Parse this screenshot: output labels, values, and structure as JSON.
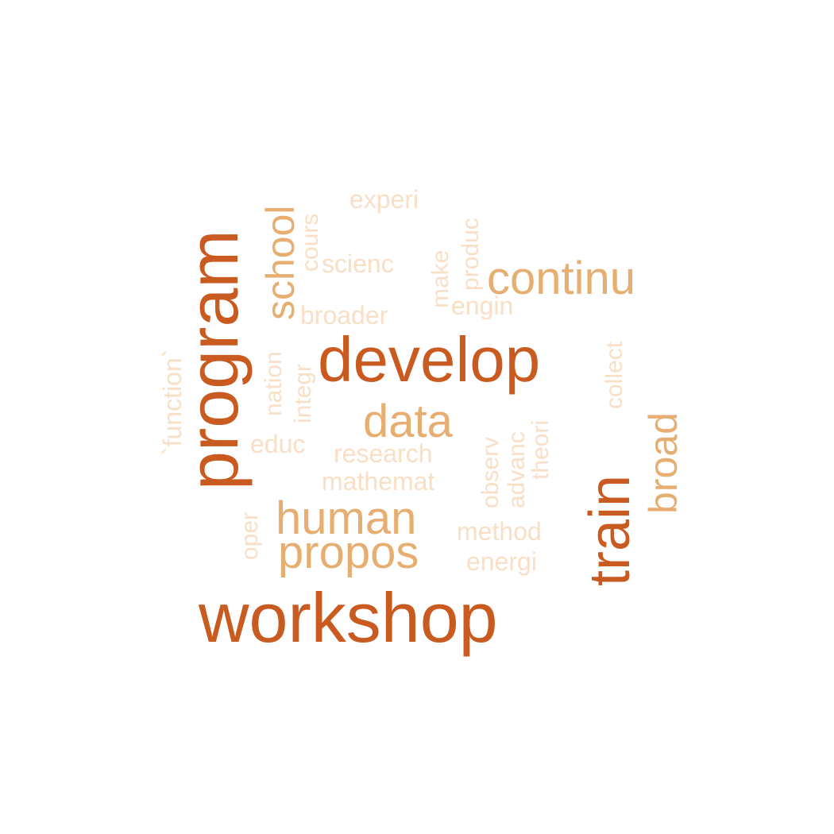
{
  "colors": {
    "dark": "#c95a20",
    "medium": "#e7ae72",
    "light": "#f8dfc6"
  },
  "words": [
    {
      "id": "workshop",
      "text": "workshop",
      "color": "dark",
      "orientation": "horizontal"
    },
    {
      "id": "develop",
      "text": "develop",
      "color": "dark",
      "orientation": "horizontal"
    },
    {
      "id": "program",
      "text": "program",
      "color": "dark",
      "orientation": "vertical"
    },
    {
      "id": "train",
      "text": "train",
      "color": "dark",
      "orientation": "vertical"
    },
    {
      "id": "continu",
      "text": "continu",
      "color": "medium",
      "orientation": "horizontal"
    },
    {
      "id": "human",
      "text": "human",
      "color": "medium",
      "orientation": "horizontal"
    },
    {
      "id": "propos",
      "text": "propos",
      "color": "medium",
      "orientation": "horizontal"
    },
    {
      "id": "data",
      "text": "data",
      "color": "medium",
      "orientation": "horizontal"
    },
    {
      "id": "school",
      "text": "school",
      "color": "medium",
      "orientation": "vertical"
    },
    {
      "id": "broad",
      "text": "broad",
      "color": "medium",
      "orientation": "vertical"
    },
    {
      "id": "experi",
      "text": "experi",
      "color": "light",
      "orientation": "horizontal"
    },
    {
      "id": "scienc",
      "text": "scienc",
      "color": "light",
      "orientation": "horizontal"
    },
    {
      "id": "broader",
      "text": "broader",
      "color": "light",
      "orientation": "horizontal"
    },
    {
      "id": "engin",
      "text": "engin",
      "color": "light",
      "orientation": "horizontal"
    },
    {
      "id": "educ",
      "text": "educ",
      "color": "light",
      "orientation": "horizontal"
    },
    {
      "id": "research",
      "text": "research",
      "color": "light",
      "orientation": "horizontal"
    },
    {
      "id": "mathemat",
      "text": "mathemat",
      "color": "light",
      "orientation": "horizontal"
    },
    {
      "id": "method",
      "text": "method",
      "color": "light",
      "orientation": "horizontal"
    },
    {
      "id": "energi",
      "text": "energi",
      "color": "light",
      "orientation": "horizontal"
    },
    {
      "id": "cours",
      "text": "cours",
      "color": "light",
      "orientation": "vertical"
    },
    {
      "id": "make",
      "text": "make",
      "color": "light",
      "orientation": "vertical"
    },
    {
      "id": "produc",
      "text": "produc",
      "color": "light",
      "orientation": "vertical"
    },
    {
      "id": "function",
      "text": "`function`",
      "color": "light",
      "orientation": "vertical"
    },
    {
      "id": "nation",
      "text": "nation",
      "color": "light",
      "orientation": "vertical"
    },
    {
      "id": "integr",
      "text": "integr",
      "color": "light",
      "orientation": "vertical"
    },
    {
      "id": "collect",
      "text": "collect",
      "color": "light",
      "orientation": "vertical"
    },
    {
      "id": "theori",
      "text": "theori",
      "color": "light",
      "orientation": "vertical"
    },
    {
      "id": "advanc",
      "text": "advanc",
      "color": "light",
      "orientation": "vertical"
    },
    {
      "id": "observ",
      "text": "observ",
      "color": "light",
      "orientation": "vertical"
    },
    {
      "id": "oper",
      "text": "oper",
      "color": "light",
      "orientation": "vertical"
    }
  ]
}
